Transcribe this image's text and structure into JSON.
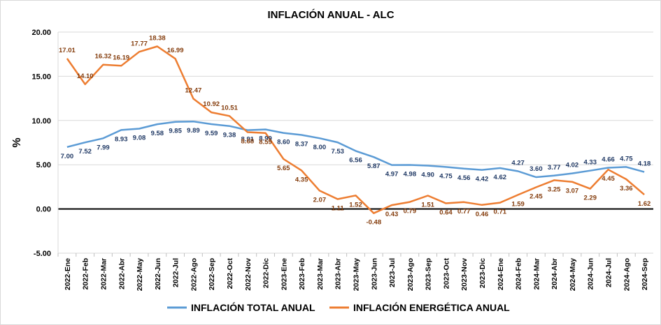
{
  "chart_data": {
    "type": "line",
    "title": "INFLACIÓN ANUAL - ALC",
    "ylabel": "%",
    "xlabel": "",
    "ylim": [
      -5,
      20
    ],
    "yticks": [
      "-5.00",
      "0.00",
      "5.00",
      "10.00",
      "15.00",
      "20.00"
    ],
    "grid": true,
    "legend_position": "bottom",
    "categories": [
      "2022-Ene",
      "2022-Feb",
      "2022-Mar",
      "2022-Abr",
      "2022-May",
      "2022-Jun",
      "2022-Jul",
      "2022-Ago",
      "2022-Sep",
      "2022-Oct",
      "2022-Nov",
      "2022-Dic",
      "2023-Ene",
      "2023-Feb",
      "2023-Mar",
      "2023-Abr",
      "2023-May",
      "2023-Jun",
      "2023-Jul",
      "2023-Ago",
      "2023-Sep",
      "2023-Oct",
      "2023-Nov",
      "2023-Dic",
      "2024-Ene",
      "2024-Feb",
      "2024-Mar",
      "2024-Abr",
      "2024-May",
      "2024-Jun",
      "2024-Jul",
      "2024-Ago",
      "2024-Sep"
    ],
    "series": [
      {
        "name": "INFLACIÓN TOTAL ANUAL",
        "color": "#5b9bd5",
        "label_color": "#1f3864",
        "values": [
          7.0,
          7.52,
          7.99,
          8.93,
          9.08,
          9.58,
          9.85,
          9.89,
          9.59,
          9.38,
          8.91,
          8.99,
          8.6,
          8.37,
          8.0,
          7.53,
          6.56,
          5.87,
          4.97,
          4.98,
          4.9,
          4.75,
          4.56,
          4.42,
          4.62,
          4.27,
          3.6,
          3.77,
          4.02,
          4.33,
          4.66,
          4.75,
          4.18
        ],
        "labels": [
          "7.00",
          "7.52",
          "7.99",
          "8.93",
          "9.08",
          "9.58",
          "9.85",
          "9.89",
          "9.59",
          "9.38",
          "8.91",
          "8.99",
          "8.60",
          "8.37",
          "8.00",
          "7.53",
          "6.56",
          "5.87",
          "4.97",
          "4.98",
          "4.90",
          "4.75",
          "4.56",
          "4.42",
          "4.62",
          "4.27",
          "3.60",
          "3.77",
          "4.02",
          "4.33",
          "4.66",
          "4.75",
          "4.18"
        ]
      },
      {
        "name": "INFLACIÓN ENERGÉTICA ANUAL",
        "color": "#ed7d31",
        "label_color": "#843c0c",
        "values": [
          17.01,
          14.1,
          16.32,
          16.19,
          17.77,
          18.38,
          16.99,
          12.47,
          10.92,
          10.51,
          8.68,
          8.59,
          5.65,
          4.35,
          2.07,
          1.11,
          1.52,
          -0.48,
          0.43,
          0.79,
          1.51,
          0.64,
          0.77,
          0.46,
          0.71,
          1.59,
          2.45,
          3.25,
          3.07,
          2.29,
          4.45,
          3.36,
          1.62
        ],
        "labels": [
          "17.01",
          "14.10",
          "16.32",
          "16.19",
          "17.77",
          "18.38",
          "16.99",
          "12.47",
          "10.92",
          "10.51",
          "8.68",
          "8.59",
          "5.65",
          "4.35",
          "2.07",
          "1.11",
          "1.52",
          "-0.48",
          "0.43",
          "0.79",
          "1.51",
          "0.64",
          "0.77",
          "0.46",
          "0.71",
          "1.59",
          "2.45",
          "3.25",
          "3.07",
          "2.29",
          "4.45",
          "3.36",
          "1.62"
        ]
      }
    ]
  }
}
